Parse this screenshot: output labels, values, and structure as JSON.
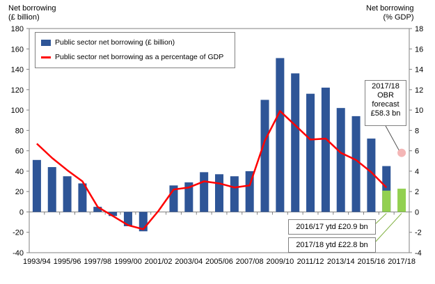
{
  "axis_titles": {
    "left_line1": "Net borrowing",
    "left_line2": "(£ billion)",
    "right_line1": "Net borrowing",
    "right_line2": "(% GDP)"
  },
  "legend": {
    "bars": "Public sector net borrowing (£ billion)",
    "line": "Public sector net borrowing as a percentage of GDP"
  },
  "callouts": {
    "forecast": [
      "2017/18",
      "OBR",
      "forecast",
      "£58.3 bn"
    ],
    "ytd_2016": "2016/17 ytd £20.9 bn",
    "ytd_2017": "2017/18 ytd £22.8 bn"
  },
  "colors": {
    "bar": "#2e5597",
    "ytd_bar": "#92d050",
    "line": "#ff0000",
    "forecast_marker": "#f4b6b6"
  },
  "chart_data": {
    "type": "bar",
    "categories": [
      "1993/94",
      "1994/95",
      "1995/96",
      "1996/97",
      "1997/98",
      "1998/99",
      "1999/00",
      "2000/01",
      "2001/02",
      "2002/03",
      "2003/04",
      "2004/05",
      "2005/06",
      "2006/07",
      "2007/08",
      "2008/09",
      "2009/10",
      "2010/11",
      "2011/12",
      "2012/13",
      "2013/14",
      "2014/15",
      "2015/16",
      "2016/17",
      "2017/18"
    ],
    "x_tick_labels": [
      "1993/94",
      "1995/96",
      "1997/98",
      "1999/00",
      "2001/02",
      "2003/04",
      "2005/06",
      "2007/08",
      "2009/10",
      "2011/12",
      "2013/14",
      "2015/16",
      "2017/18"
    ],
    "series": [
      {
        "name": "Public sector net borrowing (£ billion)",
        "axis": "left",
        "values": [
          51,
          44,
          35,
          28,
          5,
          -4,
          -14,
          -19,
          0,
          26,
          29,
          39,
          37,
          35,
          40,
          110,
          151,
          136,
          116,
          122,
          102,
          94,
          72,
          45,
          null
        ]
      },
      {
        "name": "ytd",
        "axis": "left",
        "values": [
          null,
          null,
          null,
          null,
          null,
          null,
          null,
          null,
          null,
          null,
          null,
          null,
          null,
          null,
          null,
          null,
          null,
          null,
          null,
          null,
          null,
          null,
          null,
          20.9,
          22.8
        ]
      },
      {
        "name": "Public sector net borrowing as a percentage of GDP",
        "axis": "right",
        "type": "line",
        "values": [
          6.7,
          5.3,
          4.1,
          3.0,
          0.5,
          -0.4,
          -1.3,
          -1.7,
          0.1,
          2.2,
          2.4,
          3.0,
          2.8,
          2.4,
          2.6,
          7.0,
          9.9,
          8.5,
          7.1,
          7.2,
          5.8,
          5.1,
          3.9,
          2.4,
          null
        ]
      },
      {
        "name": "2017/18 OBR forecast",
        "axis": "right",
        "type": "point",
        "values": [
          null,
          null,
          null,
          null,
          null,
          null,
          null,
          null,
          null,
          null,
          null,
          null,
          null,
          null,
          null,
          null,
          null,
          null,
          null,
          null,
          null,
          null,
          null,
          null,
          5.8
        ]
      }
    ],
    "ylim_left": [
      -40,
      180
    ],
    "yticks_left": [
      -40,
      -20,
      0,
      20,
      40,
      60,
      80,
      100,
      120,
      140,
      160,
      180
    ],
    "ylim_right": [
      -4,
      18
    ],
    "yticks_right": [
      -4,
      -2,
      0,
      2,
      4,
      6,
      8,
      10,
      12,
      14,
      16,
      18
    ],
    "grid": false,
    "legend_position": "top-left"
  }
}
